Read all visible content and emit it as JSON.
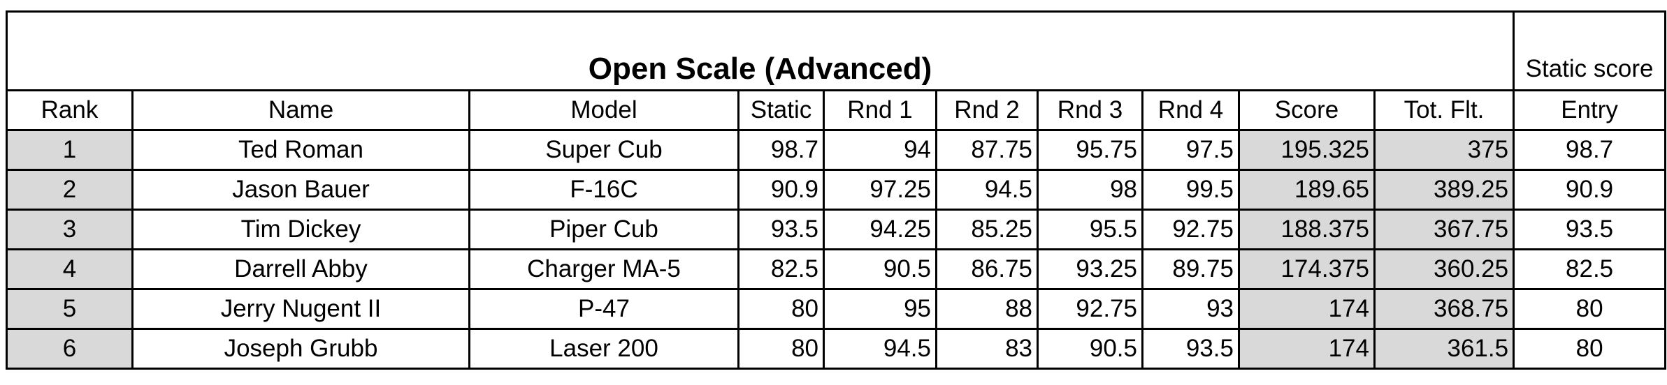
{
  "title": "Open Scale (Advanced)",
  "corner_header": "Static score",
  "headers": [
    "Rank",
    "Name",
    "Model",
    "Static",
    "Rnd 1",
    "Rnd 2",
    "Rnd 3",
    "Rnd 4",
    "Score",
    "Tot. Flt.",
    "Entry"
  ],
  "rows": [
    [
      "1",
      "Ted Roman",
      "Super Cub",
      "98.7",
      "94",
      "87.75",
      "95.75",
      "97.5",
      "195.325",
      "375",
      "98.7"
    ],
    [
      "2",
      "Jason Bauer",
      "F-16C",
      "90.9",
      "97.25",
      "94.5",
      "98",
      "99.5",
      "189.65",
      "389.25",
      "90.9"
    ],
    [
      "3",
      "Tim Dickey",
      "Piper Cub",
      "93.5",
      "94.25",
      "85.25",
      "95.5",
      "92.75",
      "188.375",
      "367.75",
      "93.5"
    ],
    [
      "4",
      "Darrell Abby",
      "Charger MA-5",
      "82.5",
      "90.5",
      "86.75",
      "93.25",
      "89.75",
      "174.375",
      "360.25",
      "82.5"
    ],
    [
      "5",
      "Jerry Nugent II",
      "P-47",
      "80",
      "95",
      "88",
      "92.75",
      "93",
      "174",
      "368.75",
      "80"
    ],
    [
      "6",
      "Joseph Grubb",
      "Laser 200",
      "80",
      "94.5",
      "83",
      "90.5",
      "93.5",
      "174",
      "361.5",
      "80"
    ]
  ]
}
